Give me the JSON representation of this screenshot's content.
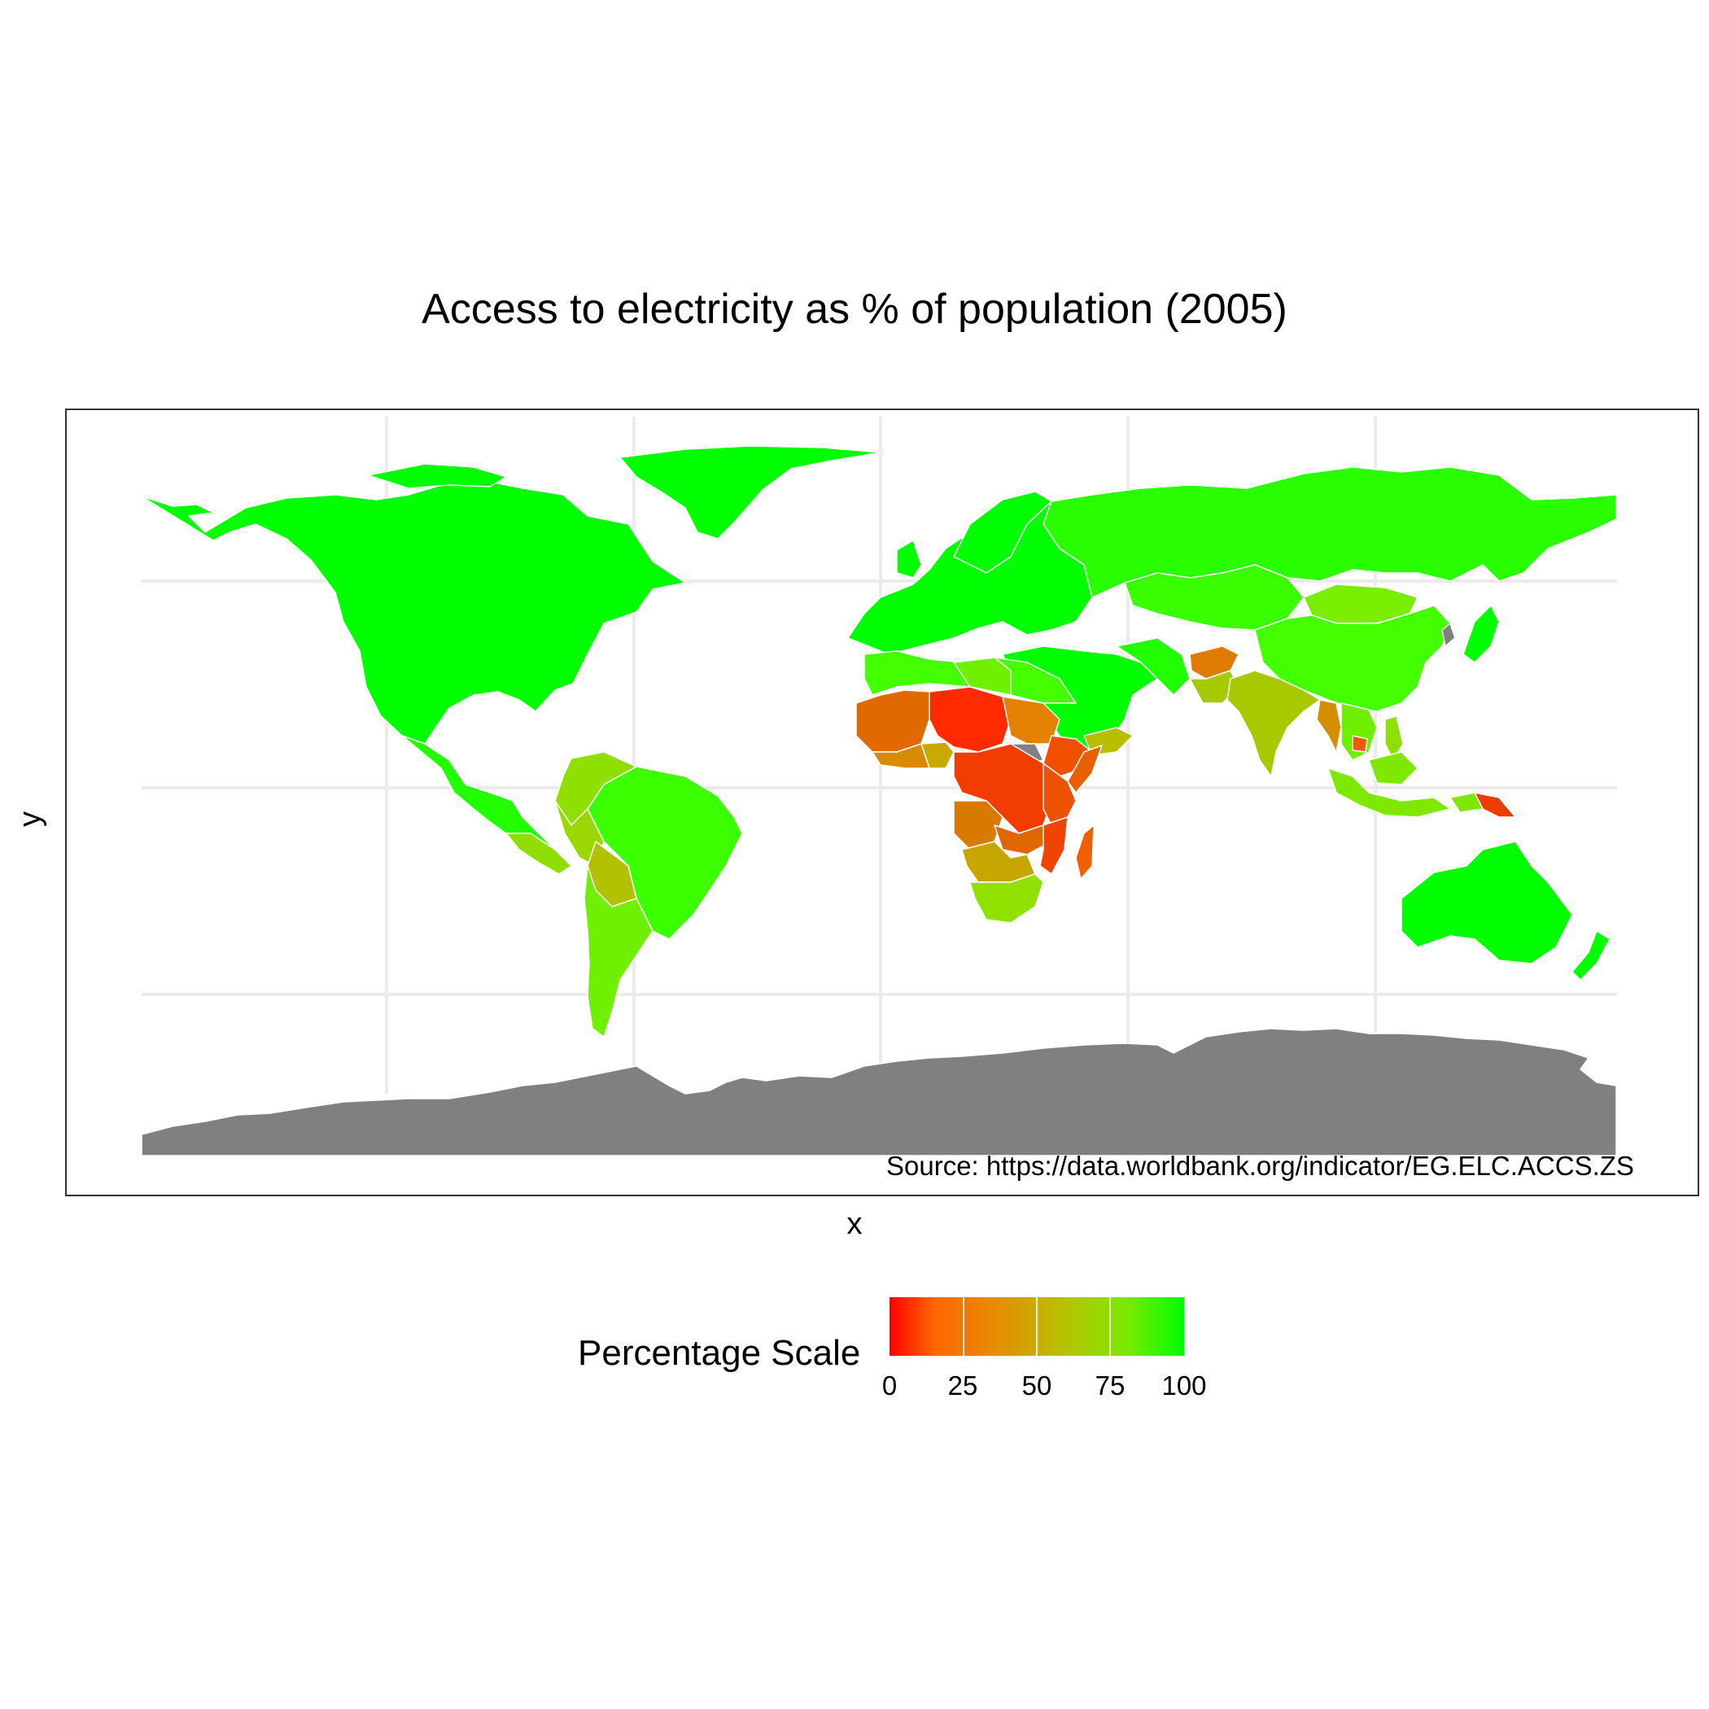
{
  "chart_data": {
    "type": "choropleth-map",
    "title": "Access to electricity as % of population (2005)",
    "xlabel": "x",
    "ylabel": "y",
    "annotation": "Source: https://data.worldbank.org/indicator/EG.ELC.ACCS.ZS",
    "legend": {
      "title": "Percentage Scale",
      "placement": "bottom",
      "ticks": [
        0,
        25,
        50,
        75,
        100
      ],
      "tick_labels": [
        "0",
        "25",
        "50",
        "75",
        "100"
      ],
      "range": [
        0,
        100
      ],
      "colors": {
        "low": "#ff0000",
        "mid": "#c8b400",
        "high": "#00ff00",
        "missing": "#808080"
      }
    },
    "grid": true,
    "regions": [
      {
        "region": "North America",
        "value": 100
      },
      {
        "region": "Greenland",
        "value": 100
      },
      {
        "region": "Russia",
        "value": 97
      },
      {
        "region": "Europe",
        "value": 100
      },
      {
        "region": "China",
        "value": 96
      },
      {
        "region": "Mongolia",
        "value": 85
      },
      {
        "region": "India",
        "value": 65
      },
      {
        "region": "Afghanistan",
        "value": 23
      },
      {
        "region": "Myanmar",
        "value": 40
      },
      {
        "region": "Cambodia",
        "value": 25
      },
      {
        "region": "Brazil",
        "value": 96
      },
      {
        "region": "Bolivia",
        "value": 65
      },
      {
        "region": "Peru",
        "value": 72
      },
      {
        "region": "Chad",
        "value": 4
      },
      {
        "region": "Nigeria",
        "value": 50
      },
      {
        "region": "DR Congo",
        "value": 12
      },
      {
        "region": "Madagascar",
        "value": 17
      },
      {
        "region": "Ethiopia",
        "value": 15
      },
      {
        "region": "South Africa",
        "value": 80
      },
      {
        "region": "Australia",
        "value": 100
      },
      {
        "region": "Papua New Guinea",
        "value": 12
      },
      {
        "region": "Indonesia",
        "value": 88
      },
      {
        "region": "Antarctica",
        "value": null
      }
    ]
  }
}
